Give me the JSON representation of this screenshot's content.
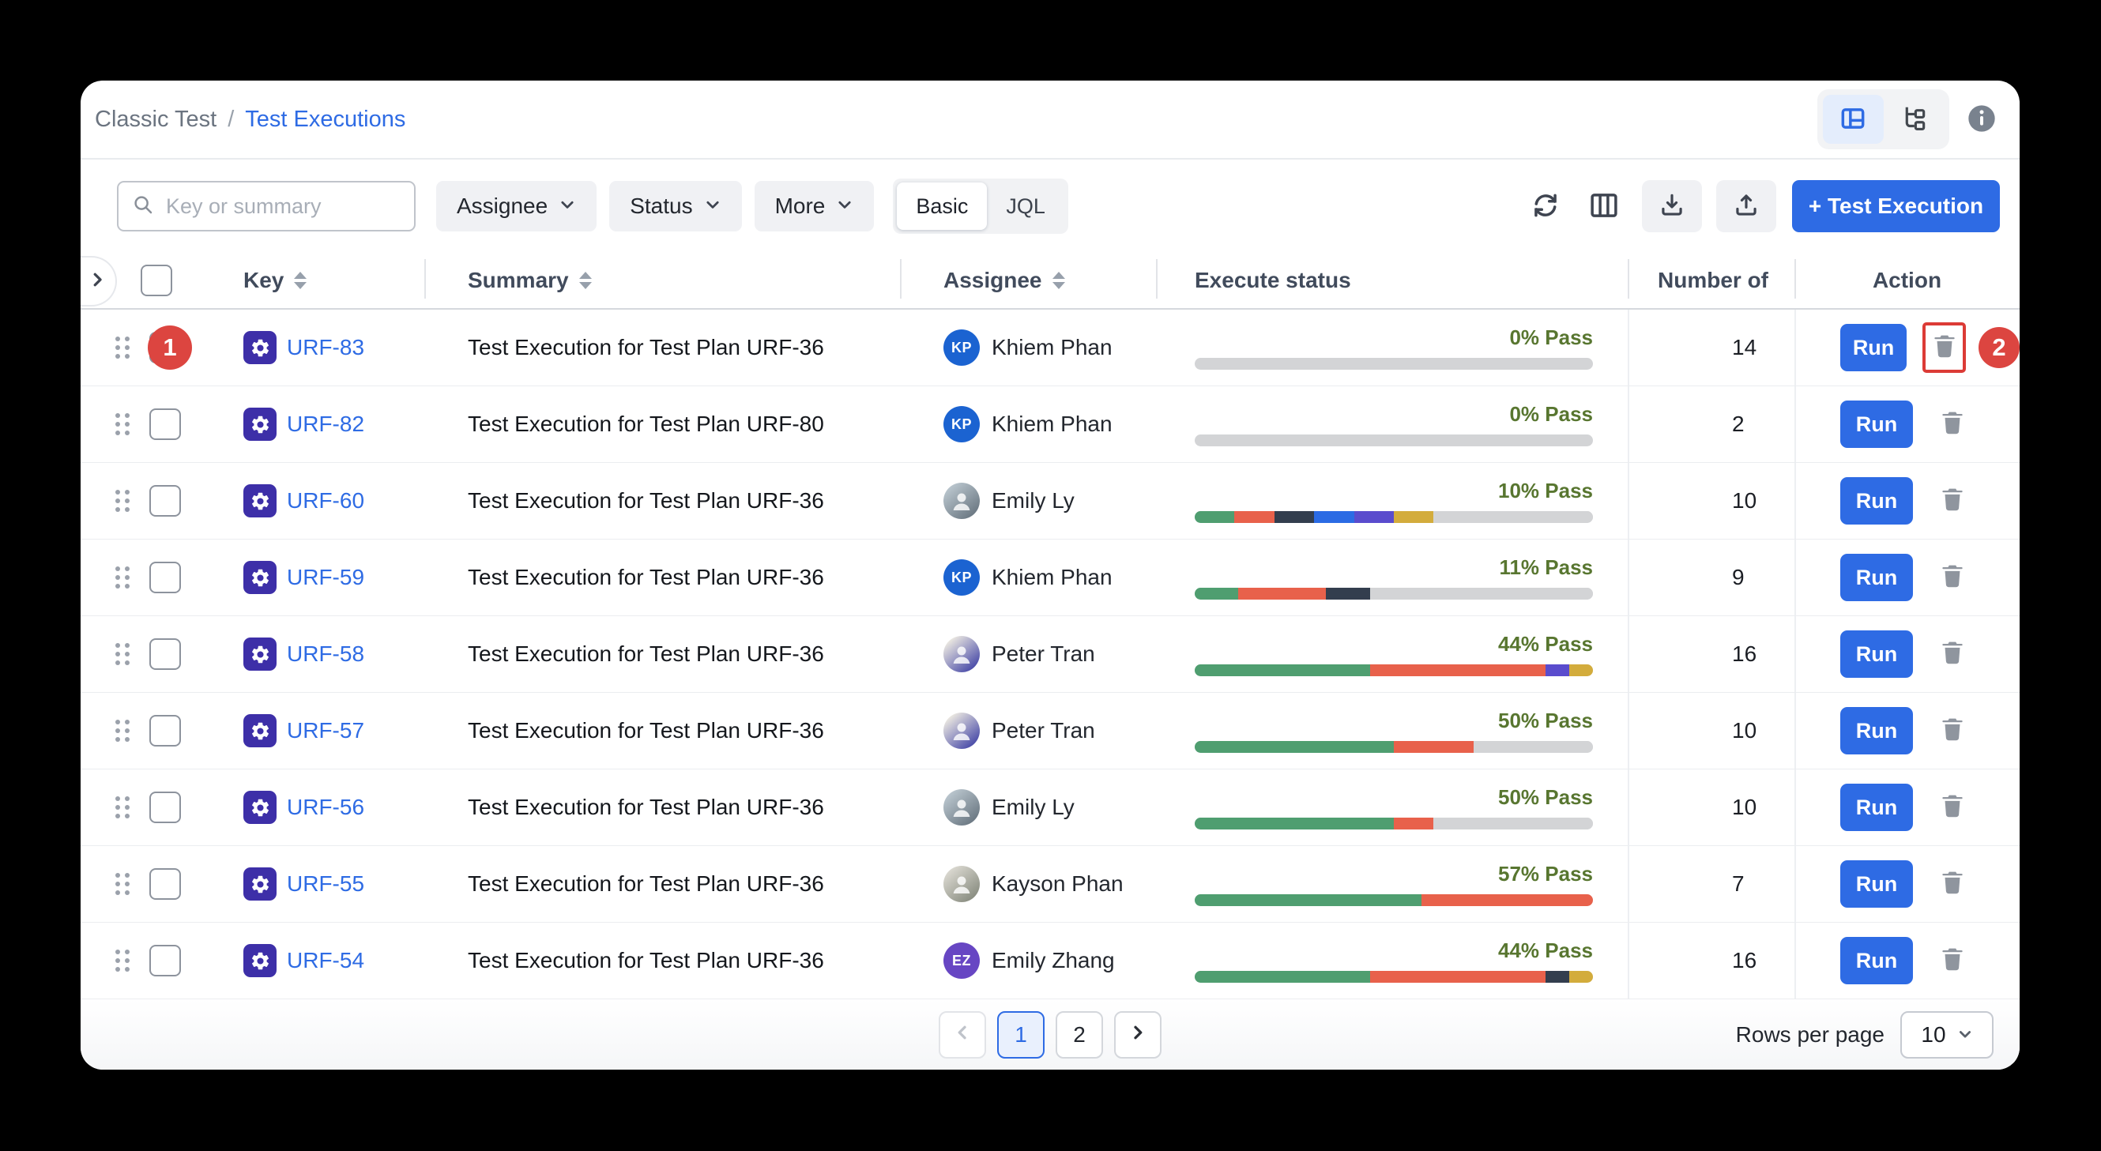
{
  "app": {
    "breadcrumb": {
      "parent": "Classic Test",
      "separator": "/",
      "current": "Test Executions"
    }
  },
  "toolbar": {
    "search": {
      "placeholder": "Key or summary"
    },
    "filters": [
      "Assignee",
      "Status",
      "More"
    ],
    "query_mode": {
      "options": [
        "Basic",
        "JQL"
      ],
      "selected": "Basic"
    },
    "create_button": "+ Test Execution"
  },
  "table": {
    "columns": [
      {
        "label": "Key",
        "sortable": true
      },
      {
        "label": "Summary",
        "sortable": true
      },
      {
        "label": "Assignee",
        "sortable": true
      },
      {
        "label": "Execute status",
        "sortable": false
      },
      {
        "label": "Number of",
        "sortable": false
      },
      {
        "label": "Action",
        "sortable": false
      }
    ],
    "run_label": "Run",
    "status_colors": {
      "green": "#4f9e70",
      "orange": "#e8614b",
      "navy": "#333e4e",
      "blue": "#2b6be4",
      "purple": "#5a4ccd",
      "gold": "#d3ac3c",
      "gray": "#d3d4d6"
    },
    "rows": [
      {
        "key": "URF-83",
        "summary": "Test Execution for Test Plan URF-36",
        "assignee": {
          "name": "Khiem Phan",
          "type": "initials",
          "initials": "KP",
          "color": "#1b63d1"
        },
        "pass": "0% Pass",
        "tests": "14",
        "segments": [
          [
            "gray",
            100
          ]
        ]
      },
      {
        "key": "URF-82",
        "summary": "Test Execution for Test Plan URF-80",
        "assignee": {
          "name": "Khiem Phan",
          "type": "initials",
          "initials": "KP",
          "color": "#1b63d1"
        },
        "pass": "0% Pass",
        "tests": "2",
        "segments": [
          [
            "gray",
            100
          ]
        ]
      },
      {
        "key": "URF-60",
        "summary": "Test Execution for Test Plan URF-36",
        "assignee": {
          "name": "Emily Ly",
          "type": "photo",
          "palette": [
            "#b8c4cc",
            "#5d6a75"
          ]
        },
        "pass": "10% Pass",
        "tests": "10",
        "segments": [
          [
            "green",
            10
          ],
          [
            "orange",
            10
          ],
          [
            "navy",
            10
          ],
          [
            "blue",
            10
          ],
          [
            "purple",
            10
          ],
          [
            "gold",
            10
          ],
          [
            "gray",
            40
          ]
        ]
      },
      {
        "key": "URF-59",
        "summary": "Test Execution for Test Plan URF-36",
        "assignee": {
          "name": "Khiem Phan",
          "type": "initials",
          "initials": "KP",
          "color": "#1b63d1"
        },
        "pass": "11% Pass",
        "tests": "9",
        "segments": [
          [
            "green",
            11
          ],
          [
            "orange",
            22
          ],
          [
            "navy",
            11
          ],
          [
            "gray",
            56
          ]
        ]
      },
      {
        "key": "URF-58",
        "summary": "Test Execution for Test Plan URF-36",
        "assignee": {
          "name": "Peter Tran",
          "type": "photo",
          "palette": [
            "#e9e6e0",
            "#2c2f9e"
          ]
        },
        "pass": "44% Pass",
        "tests": "16",
        "segments": [
          [
            "green",
            44
          ],
          [
            "orange",
            44
          ],
          [
            "purple",
            6
          ],
          [
            "gold",
            6
          ]
        ]
      },
      {
        "key": "URF-57",
        "summary": "Test Execution for Test Plan URF-36",
        "assignee": {
          "name": "Peter Tran",
          "type": "photo",
          "palette": [
            "#e9e6e0",
            "#2c2f9e"
          ]
        },
        "pass": "50% Pass",
        "tests": "10",
        "segments": [
          [
            "green",
            50
          ],
          [
            "orange",
            20
          ],
          [
            "gray",
            30
          ]
        ]
      },
      {
        "key": "URF-56",
        "summary": "Test Execution for Test Plan URF-36",
        "assignee": {
          "name": "Emily Ly",
          "type": "photo",
          "palette": [
            "#b8c4cc",
            "#5d6a75"
          ]
        },
        "pass": "50% Pass",
        "tests": "10",
        "segments": [
          [
            "green",
            50
          ],
          [
            "orange",
            10
          ],
          [
            "gray",
            40
          ]
        ]
      },
      {
        "key": "URF-55",
        "summary": "Test Execution for Test Plan URF-36",
        "assignee": {
          "name": "Kayson Phan",
          "type": "photo",
          "palette": [
            "#d9d7cf",
            "#7a7f72"
          ]
        },
        "pass": "57% Pass",
        "tests": "7",
        "segments": [
          [
            "green",
            57
          ],
          [
            "orange",
            43
          ]
        ]
      },
      {
        "key": "URF-54",
        "summary": "Test Execution for Test Plan URF-36",
        "assignee": {
          "name": "Emily Zhang",
          "type": "initials",
          "initials": "EZ",
          "color": "#6746c3"
        },
        "pass": "44% Pass",
        "tests": "16",
        "segments": [
          [
            "green",
            44
          ],
          [
            "orange",
            44
          ],
          [
            "navy",
            6
          ],
          [
            "gold",
            6
          ]
        ]
      }
    ]
  },
  "pagination": {
    "pages": [
      "1",
      "2"
    ],
    "current": "1",
    "rows_per_page_label": "Rows per page",
    "rows_per_page_value": "10"
  },
  "annotations": {
    "step1": "1",
    "step2": "2"
  }
}
